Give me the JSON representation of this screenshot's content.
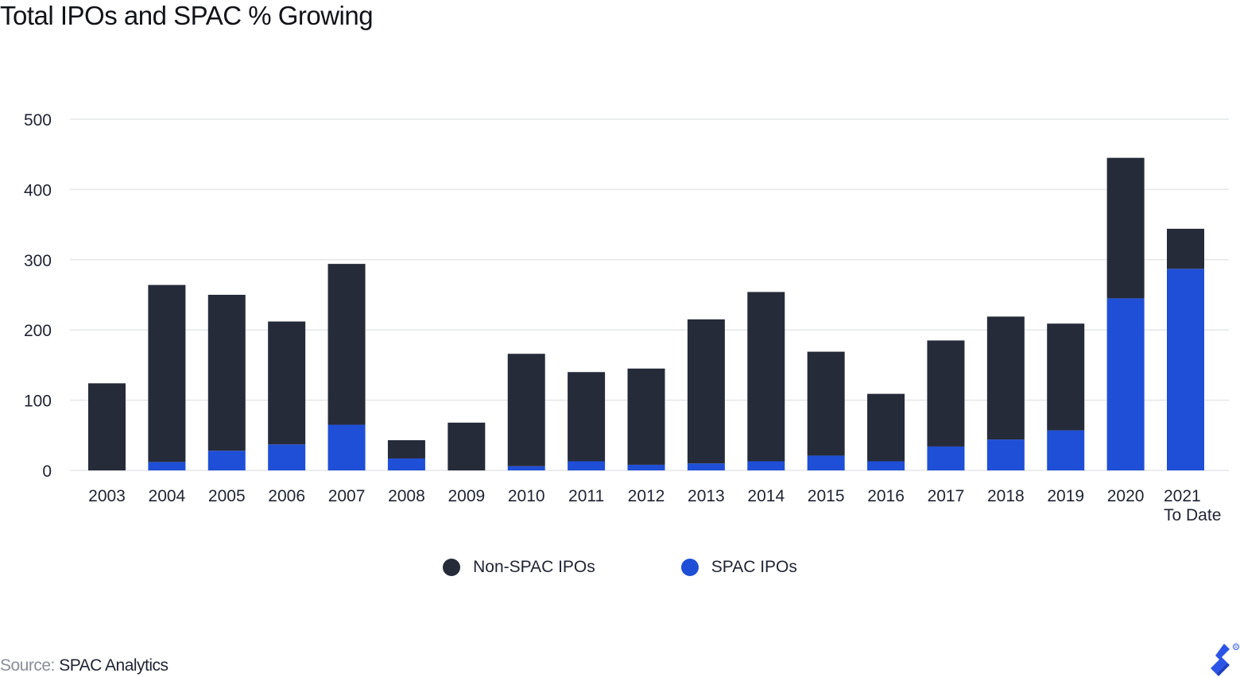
{
  "title": "Total IPOs and SPAC % Growing",
  "colors": {
    "non_spac": "#262b3a",
    "spac": "#1f4fd6",
    "grid": "#e6e7ea",
    "text": "#1f2333"
  },
  "legend": {
    "items": [
      {
        "label": "Non-SPAC IPOs",
        "color": "#262b3a"
      },
      {
        "label": "SPAC IPOs",
        "color": "#1f4fd6"
      }
    ]
  },
  "source": {
    "label": "Source:",
    "value": "SPAC Analytics"
  },
  "logo_icon": "toptal-logo-icon",
  "chart_data": {
    "type": "bar",
    "stacked": true,
    "title": "Total IPOs and SPAC % Growing",
    "xlabel": "",
    "ylabel": "",
    "ylim": [
      0,
      500
    ],
    "yticks": [
      0,
      100,
      200,
      300,
      400,
      500
    ],
    "grid": true,
    "legend_position": "bottom",
    "categories": [
      "2003",
      "2004",
      "2005",
      "2006",
      "2007",
      "2008",
      "2009",
      "2010",
      "2011",
      "2012",
      "2013",
      "2014",
      "2015",
      "2016",
      "2017",
      "2018",
      "2019",
      "2020",
      "2021\nTo Date"
    ],
    "series": [
      {
        "name": "SPAC IPOs",
        "values": [
          0,
          12,
          28,
          37,
          65,
          17,
          0,
          6,
          13,
          8,
          10,
          13,
          21,
          13,
          34,
          44,
          57,
          245,
          287
        ]
      },
      {
        "name": "Non-SPAC IPOs",
        "values": [
          124,
          252,
          222,
          175,
          229,
          26,
          68,
          160,
          127,
          137,
          205,
          241,
          148,
          96,
          151,
          175,
          152,
          200,
          57
        ]
      }
    ]
  }
}
